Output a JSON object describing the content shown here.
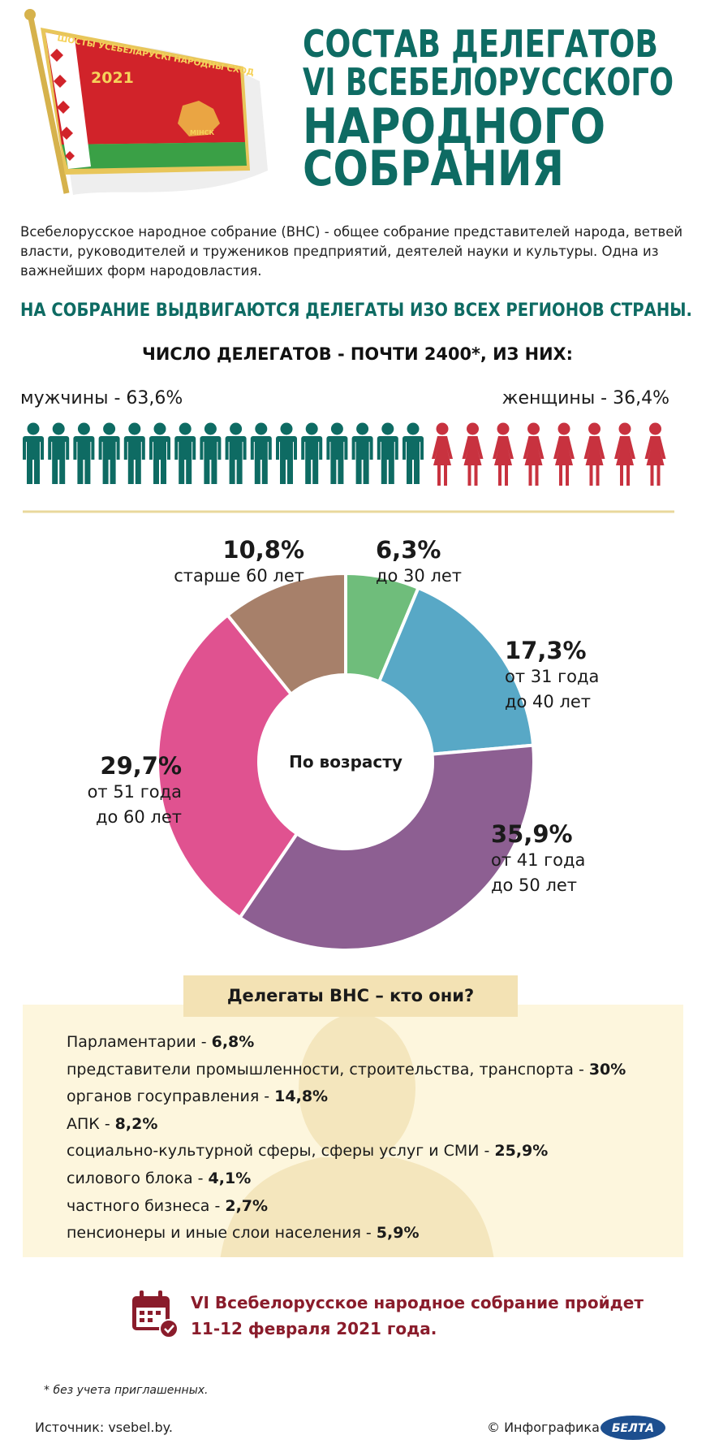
{
  "header": {
    "flag_motto": "ШОСТЫ ЎСЕБЕЛАРУСКІ НАРОДНЫ СХОД",
    "flag_year": "2021",
    "flag_city": "МІНСК",
    "title": [
      "СОСТАВ ДЕЛЕГАТОВ",
      "VI ВСЕБЕЛОРУССКОГО",
      "НАРОДНОГО",
      "СОБРАНИЯ"
    ]
  },
  "intro": "Всебелорусское народное собрание (ВНС) - общее собрание представителей народа, ветвей власти, руководителей и тружеников предприятий, деятелей науки и культуры. Одна из важнейших форм народовластия.",
  "regions_note": "НА СОБРАНИЕ ВЫДВИГАЮТСЯ ДЕЛЕГАТЫ ИЗО ВСЕХ РЕГИОНОВ СТРАНЫ.",
  "gender": {
    "heading": "ЧИСЛО ДЕЛЕГАТОВ - ПОЧТИ 2400*, ИЗ НИХ:",
    "men": "мужчины - 63,6%",
    "women": "женщины - 36,4%"
  },
  "chart_data": {
    "type": "pie",
    "center_label": "По возрасту",
    "categories": [
      "до 30 лет",
      "от 31 года\nдо 40 лет",
      "от 41 года\nдо 50 лет",
      "от 51 года\nдо 60 лет",
      "старше 60 лет"
    ],
    "values": [
      6.3,
      17.3,
      35.9,
      29.7,
      10.8
    ],
    "value_labels": [
      "6,3%",
      "17,3%",
      "35,9%",
      "29,7%",
      "10,8%"
    ],
    "colors": [
      "#6fbd7b",
      "#58a8c6",
      "#8d5f92",
      "#e05290",
      "#a7806a"
    ]
  },
  "roles": {
    "heading": "Делегаты ВНС – кто они?",
    "items": [
      {
        "label": "Парламентарии -",
        "value": "6,8%"
      },
      {
        "label": "представители промышленности, строительства, транспорта -",
        "value": "30%"
      },
      {
        "label": "органов госуправления -",
        "value": "14,8%"
      },
      {
        "label": "АПК -",
        "value": "8,2%"
      },
      {
        "label": "социально-культурной сферы, сферы услуг и СМИ -",
        "value": "25,9%"
      },
      {
        "label": "силового блока -",
        "value": "4,1%"
      },
      {
        "label": "частного бизнеса -",
        "value": "2,7%"
      },
      {
        "label": "пенсионеры и иные слои населения -",
        "value": "5,9%"
      }
    ]
  },
  "event": "VI Всебелорусское народное собрание пройдет\n11-12 февраля 2021 года.",
  "footnote": "* без учета приглашенных.",
  "source": "Источник: vsebel.by.",
  "credit": "© Инфографика",
  "logo": "БЕЛТА"
}
